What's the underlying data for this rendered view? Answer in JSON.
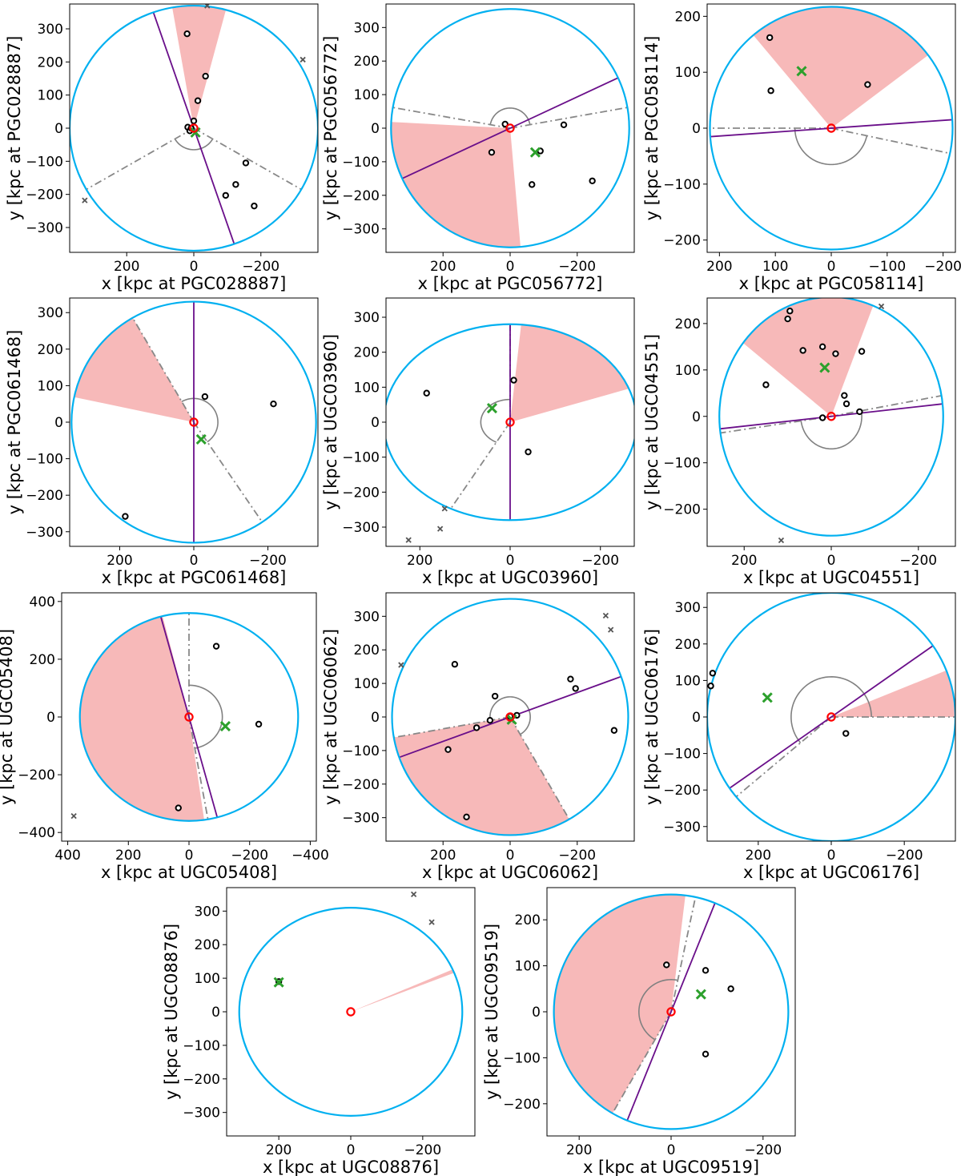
{
  "chart_data": [
    {
      "type": "scatter",
      "galaxy": "PGC028887",
      "xlabel": "x [kpc at PGC028887]",
      "ylabel": "y [kpc at PGC028887]",
      "xlim": [
        370,
        -370
      ],
      "ylim": [
        -375,
        375
      ],
      "xticks": [
        200,
        0,
        -200
      ],
      "yticks": [
        -300,
        -200,
        -100,
        0,
        100,
        200,
        300
      ],
      "virial_radius": 370,
      "inner_radius": 65,
      "gap": [
        210,
        330
      ],
      "major_axis_angle": 71,
      "wedge": [
        80,
        105
      ],
      "members": [
        [
          20,
          285
        ],
        [
          -35,
          157
        ],
        [
          -12,
          83
        ],
        [
          0,
          22
        ],
        [
          18,
          3
        ],
        [
          12,
          -8
        ],
        [
          8,
          0
        ],
        [
          -95,
          -203
        ],
        [
          -125,
          -170
        ],
        [
          -155,
          -105
        ],
        [
          -180,
          -235
        ]
      ],
      "mean": [
        -5,
        -13
      ],
      "outside": [
        [
          -40,
          370
        ],
        [
          -325,
          207
        ],
        [
          325,
          -218
        ]
      ]
    },
    {
      "type": "scatter",
      "galaxy": "PGC056772",
      "xlabel": "x [kpc at PGC056772]",
      "ylabel": "y [kpc at PGC056772]",
      "xlim": [
        370,
        -370
      ],
      "ylim": [
        -370,
        370
      ],
      "xticks": [
        200,
        0,
        -200
      ],
      "yticks": [
        -300,
        -200,
        -100,
        0,
        100,
        200,
        300
      ],
      "virial_radius": 355,
      "inner_radius": 60,
      "gap": [
        10,
        170
      ],
      "major_axis_angle": 155,
      "wedge": [
        265,
        363
      ],
      "members": [
        [
          15,
          12
        ],
        [
          55,
          -72
        ],
        [
          -90,
          -68
        ],
        [
          -65,
          -168
        ],
        [
          -160,
          10
        ],
        [
          -245,
          -157
        ]
      ],
      "mean": [
        -75,
        -72
      ],
      "outside": []
    },
    {
      "type": "scatter",
      "galaxy": "PGC058114",
      "xlabel": "x [kpc at PGC058114]",
      "ylabel": "y [kpc at PGC058114]",
      "xlim": [
        222,
        -222
      ],
      "ylim": [
        -222,
        222
      ],
      "xticks": [
        200,
        100,
        0,
        -100,
        -200
      ],
      "yticks": [
        -200,
        -100,
        0,
        100,
        200
      ],
      "virial_radius": 217,
      "inner_radius": 65,
      "gap": [
        192,
        360
      ],
      "major_axis_angle": 176,
      "wedge": [
        50,
        143
      ],
      "members": [
        [
          110,
          162
        ],
        [
          108,
          67
        ],
        [
          -65,
          78
        ]
      ],
      "mean": [
        53,
        102
      ],
      "outside": []
    },
    {
      "type": "scatter",
      "galaxy": "PGC061468",
      "xlabel": "x [kpc at PGC061468]",
      "ylabel": "y [kpc at PGC061468]",
      "xlim": [
        335,
        -335
      ],
      "ylim": [
        -340,
        340
      ],
      "xticks": [
        200,
        0,
        -200
      ],
      "yticks": [
        -300,
        -200,
        -100,
        0,
        100,
        200,
        300
      ],
      "virial_radius": 330,
      "inner_radius": 65,
      "gap": [
        60,
        236
      ],
      "major_axis_angle": 90,
      "wedge": [
        12,
        60
      ],
      "members": [
        [
          -30,
          70
        ],
        [
          -215,
          50
        ],
        [
          185,
          -258
        ]
      ],
      "mean": [
        -20,
        -47
      ],
      "outside": []
    },
    {
      "type": "scatter",
      "galaxy": "UGC03960",
      "xlabel": "x [kpc at UGC03960]",
      "ylabel": "y [kpc at UGC03960]",
      "xlim": [
        275,
        -275
      ],
      "ylim": [
        -355,
        355
      ],
      "xticks": [
        200,
        0,
        -200
      ],
      "yticks": [
        -300,
        -200,
        -100,
        0,
        100,
        200,
        300
      ],
      "virial_radius": 280,
      "inner_radius": 65,
      "gap": [
        -62,
        90
      ],
      "major_axis_angle": 90,
      "wedge": [
        95,
        160
      ],
      "members": [
        [
          185,
          83
        ],
        [
          -8,
          120
        ],
        [
          -40,
          -85
        ]
      ],
      "mean": [
        40,
        40
      ],
      "outside": [
        [
          145,
          -247
        ],
        [
          155,
          -305
        ],
        [
          225,
          -337
        ]
      ]
    },
    {
      "type": "scatter",
      "galaxy": "UGC04551",
      "xlabel": "x [kpc at UGC04551]",
      "ylabel": "y [kpc at UGC04551]",
      "xlim": [
        285,
        -285
      ],
      "ylim": [
        -280,
        255
      ],
      "xticks": [
        200,
        0,
        -200
      ],
      "yticks": [
        -200,
        -100,
        0,
        100,
        200
      ],
      "virial_radius": 257,
      "inner_radius": 70,
      "gap": [
        170,
        352
      ],
      "major_axis_angle": 174,
      "wedge": [
        38,
        112
      ],
      "members": [
        [
          100,
          210
        ],
        [
          95,
          227
        ],
        [
          65,
          142
        ],
        [
          20,
          150
        ],
        [
          -10,
          135
        ],
        [
          -70,
          140
        ],
        [
          -30,
          45
        ],
        [
          -35,
          27
        ],
        [
          -65,
          10
        ],
        [
          150,
          68
        ],
        [
          20,
          -3
        ]
      ],
      "mean": [
        15,
        105
      ],
      "outside": [
        [
          -115,
          237
        ],
        [
          115,
          -267
        ]
      ]
    },
    {
      "type": "scatter",
      "galaxy": "UGC05408",
      "xlabel": "x [kpc at UGC05408]",
      "ylabel": "y [kpc at UGC05408]",
      "xlim": [
        420,
        -420
      ],
      "ylim": [
        -430,
        430
      ],
      "xticks": [
        400,
        200,
        0,
        -200,
        -400
      ],
      "yticks": [
        -400,
        -200,
        0,
        200,
        400
      ],
      "virial_radius": 360,
      "inner_radius": 110,
      "gap": [
        90,
        260
      ],
      "major_axis_angle": 75,
      "wedge": [
        262,
        436
      ],
      "members": [
        [
          -90,
          245
        ],
        [
          -230,
          -25
        ],
        [
          35,
          -315
        ]
      ],
      "mean": [
        -120,
        -32
      ],
      "outside": [
        [
          380,
          -343
        ]
      ]
    },
    {
      "type": "scatter",
      "galaxy": "UGC06062",
      "xlabel": "x [kpc at UGC06062]",
      "ylabel": "y [kpc at UGC06062]",
      "xlim": [
        370,
        -370
      ],
      "ylim": [
        -370,
        370
      ],
      "xticks": [
        200,
        0,
        -200
      ],
      "yticks": [
        -300,
        -200,
        -100,
        0,
        100,
        200,
        300
      ],
      "virial_radius": 352,
      "inner_radius": 60,
      "gap": [
        -10,
        240
      ],
      "major_axis_angle": 160,
      "wedge": [
        -10,
        -120
      ],
      "members": [
        [
          165,
          157
        ],
        [
          45,
          62
        ],
        [
          -180,
          113
        ],
        [
          -195,
          85
        ],
        [
          -310,
          -40
        ],
        [
          60,
          -10
        ],
        [
          100,
          -32
        ],
        [
          185,
          -97
        ],
        [
          130,
          -298
        ],
        [
          0,
          2
        ],
        [
          -20,
          5
        ]
      ],
      "mean": [
        -5,
        -8
      ],
      "outside": [
        [
          -285,
          302
        ],
        [
          -300,
          260
        ],
        [
          325,
          155
        ]
      ]
    },
    {
      "type": "scatter",
      "galaxy": "UGC06176",
      "xlabel": "x [kpc at UGC06176]",
      "ylabel": "y [kpc at UGC06176]",
      "xlim": [
        340,
        -340
      ],
      "ylim": [
        -340,
        340
      ],
      "xticks": [
        200,
        0,
        -200
      ],
      "yticks": [
        -300,
        -200,
        -100,
        0,
        100,
        200,
        300
      ],
      "virial_radius": 340,
      "inner_radius": 110,
      "gap": [
        -40,
        180
      ],
      "major_axis_angle": 145,
      "wedge": [
        158,
        180
      ],
      "members": [
        [
          -40,
          -45
        ],
        [
          325,
          120
        ],
        [
          330,
          85
        ]
      ],
      "mean": [
        175,
        53
      ],
      "outside": []
    },
    {
      "type": "scatter",
      "galaxy": "UGC08876",
      "xlabel": "x [kpc at UGC08876]",
      "ylabel": "y [kpc at UGC08876]",
      "xlim": [
        345,
        -345
      ],
      "ylim": [
        -370,
        370
      ],
      "xticks": [
        200,
        0,
        -200
      ],
      "yticks": [
        -300,
        -200,
        -100,
        0,
        100,
        200,
        300
      ],
      "virial_radius": 310,
      "inner_radius": null,
      "gap": null,
      "major_axis_angle": null,
      "wedge": [
        156,
        158
      ],
      "members": [
        [
          200,
          90
        ]
      ],
      "mean": [
        200,
        88
      ],
      "outside": [
        [
          -175,
          350
        ],
        [
          -225,
          267
        ]
      ]
    },
    {
      "type": "scatter",
      "galaxy": "UGC09519",
      "xlabel": "x [kpc at UGC09519]",
      "ylabel": "y [kpc at UGC09519]",
      "xlim": [
        270,
        -270
      ],
      "ylim": [
        -270,
        270
      ],
      "xticks": [
        200,
        0,
        -200
      ],
      "yticks": [
        -200,
        -100,
        0,
        100,
        200
      ],
      "virial_radius": 255,
      "inner_radius": 70,
      "gap": [
        -60,
        102
      ],
      "major_axis_angle": 112,
      "wedge": [
        -60,
        97
      ],
      "members": [
        [
          10,
          102
        ],
        [
          -75,
          90
        ],
        [
          -130,
          50
        ],
        [
          -75,
          -92
        ]
      ],
      "mean": [
        -65,
        38
      ],
      "outside": []
    }
  ],
  "colors": {
    "circle": "#00b0f0",
    "wedge": "#f08080",
    "major_axis": "#6a0f8a",
    "gap_line": "#888888",
    "inner_arc": "#808080",
    "member": "#000000",
    "mean_marker": "#2ca02c",
    "center_marker": "#ff0000",
    "outside_marker": "#555555"
  }
}
